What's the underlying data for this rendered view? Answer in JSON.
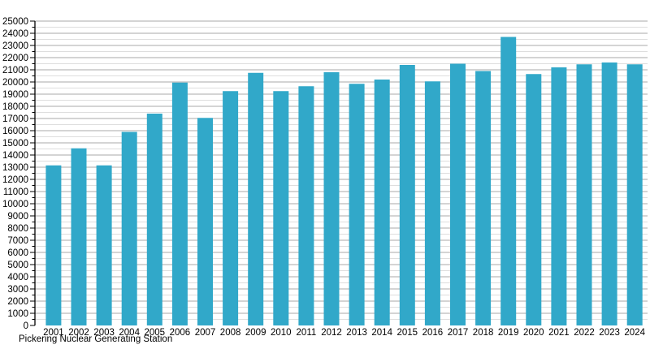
{
  "chart_data": {
    "type": "bar",
    "title": "",
    "caption": "Pickering Nuclear Generating Station",
    "xlabel": "",
    "ylabel": "",
    "categories": [
      "2001",
      "2002",
      "2003",
      "2004",
      "2005",
      "2006",
      "2007",
      "2008",
      "2009",
      "2010",
      "2011",
      "2012",
      "2013",
      "2014",
      "2015",
      "2016",
      "2017",
      "2018",
      "2019",
      "2020",
      "2021",
      "2022",
      "2023",
      "2024"
    ],
    "values": [
      13150,
      14550,
      13150,
      15900,
      17400,
      19950,
      17050,
      19250,
      20750,
      19250,
      19650,
      20800,
      19850,
      20200,
      21400,
      20050,
      21500,
      20900,
      23700,
      20650,
      21200,
      21450,
      21600,
      21450
    ],
    "ylim": [
      0,
      25000
    ],
    "y_major_step": 1000,
    "y_minor_step": 500,
    "grid": true,
    "legend_position": "none",
    "colors": {
      "bar": "#31a8c9",
      "grid_major": "#a9a9a9",
      "grid_minor": "#dedede",
      "axis": "#000000",
      "text": "#000000",
      "background": "#ffffff"
    }
  }
}
